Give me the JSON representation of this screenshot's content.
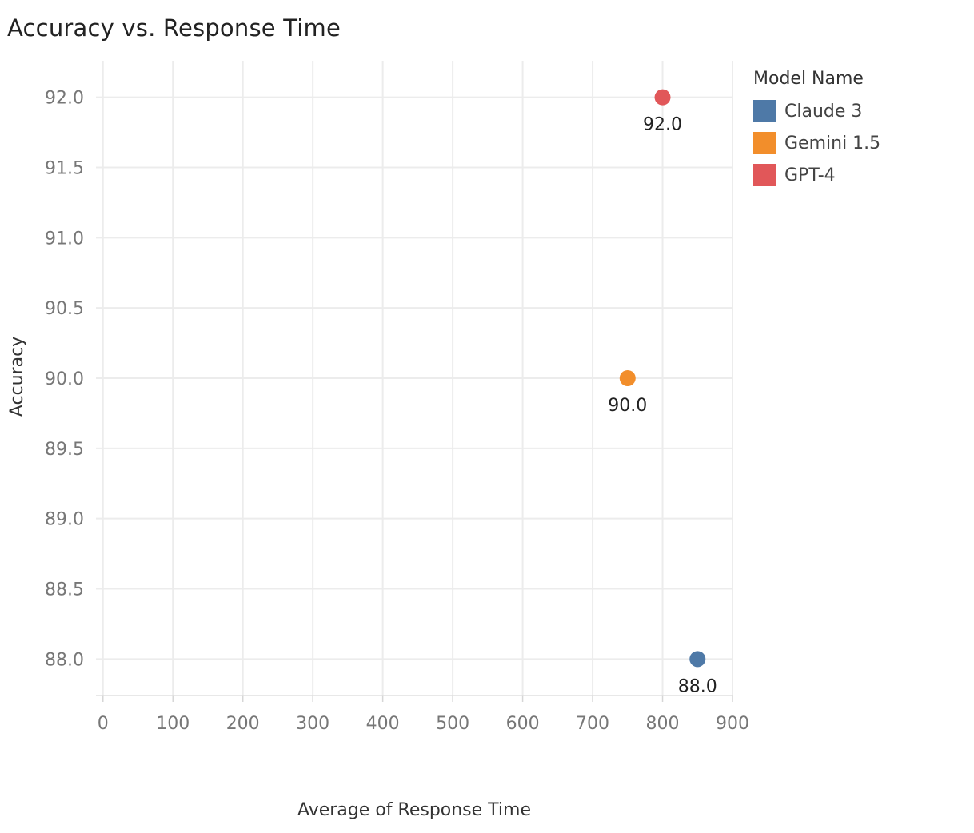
{
  "chart_data": {
    "type": "scatter",
    "title": "Accuracy vs. Response Time",
    "xlabel": "Average of Response Time",
    "ylabel": "Accuracy",
    "xlim": [
      -10,
      900
    ],
    "ylim": [
      87.74,
      92.26
    ],
    "x_ticks": [
      0,
      100,
      200,
      300,
      400,
      500,
      600,
      700,
      800,
      900
    ],
    "x_tick_labels": [
      "0",
      "100",
      "200",
      "300",
      "400",
      "500",
      "600",
      "700",
      "800",
      "900"
    ],
    "y_ticks": [
      88.0,
      88.5,
      89.0,
      89.5,
      90.0,
      90.5,
      91.0,
      91.5,
      92.0
    ],
    "y_tick_labels": [
      "88.0",
      "88.5",
      "89.0",
      "89.5",
      "90.0",
      "90.5",
      "91.0",
      "91.5",
      "92.0"
    ],
    "grid": true,
    "legend": {
      "title": "Model Name",
      "placement": "right"
    },
    "series": [
      {
        "name": "Claude 3",
        "color": "#4e79a7",
        "x": 850,
        "y": 88.0,
        "label": "88.0"
      },
      {
        "name": "Gemini 1.5",
        "color": "#f28e2b",
        "x": 750,
        "y": 90.0,
        "label": "90.0"
      },
      {
        "name": "GPT-4",
        "color": "#e15759",
        "x": 800,
        "y": 92.0,
        "label": "92.0"
      }
    ]
  }
}
